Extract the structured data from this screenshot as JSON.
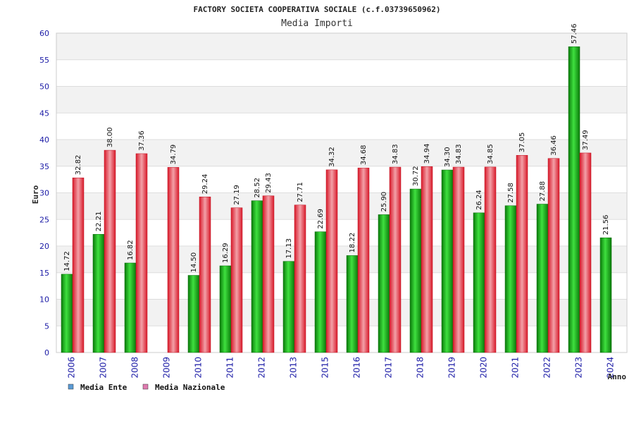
{
  "chart_data": {
    "type": "bar",
    "title": "FACTORY SOCIETA COOPERATIVA SOCIALE (c.f.03739650962)",
    "subtitle": "Media Importi",
    "ylabel": "Euro",
    "xlabel": "Anno",
    "ylim": [
      0,
      60
    ],
    "yticks": [
      0,
      5,
      10,
      15,
      20,
      25,
      30,
      35,
      40,
      45,
      50,
      55,
      60
    ],
    "categories": [
      "2006",
      "2007",
      "2008",
      "2009",
      "2010",
      "2011",
      "2012",
      "2013",
      "2015",
      "2016",
      "2017",
      "2018",
      "2019",
      "2020",
      "2021",
      "2022",
      "2023",
      "2024"
    ],
    "series": [
      {
        "name": "Media Ente",
        "color": "#1fbf1f",
        "legend_color": "#5b9bd5",
        "values": [
          14.72,
          22.21,
          16.82,
          null,
          14.5,
          16.29,
          28.52,
          17.13,
          22.69,
          18.22,
          25.9,
          30.72,
          34.3,
          26.24,
          27.58,
          27.88,
          57.46,
          21.56
        ],
        "labels": [
          "14.72",
          "22.21",
          "16.82",
          "",
          "14.50",
          "16.29",
          "28.52",
          "17.13",
          "22.69",
          "18.22",
          "25.90",
          "30.72",
          "34.30",
          "26.24",
          "27.58",
          "27.88",
          "57.46",
          "21.56"
        ]
      },
      {
        "name": "Media Nazionale",
        "color": "#e83040",
        "legend_color": "#e07bb0",
        "values": [
          32.82,
          38.0,
          37.36,
          34.79,
          29.24,
          27.19,
          29.43,
          27.71,
          34.32,
          34.68,
          34.83,
          34.94,
          34.83,
          34.85,
          37.05,
          36.46,
          37.49,
          null
        ],
        "labels": [
          "32.82",
          "38.00",
          "37.36",
          "34.79",
          "29.24",
          "27.19",
          "29.43",
          "27.71",
          "34.32",
          "34.68",
          "34.83",
          "34.94",
          "34.83",
          "34.85",
          "37.05",
          "36.46",
          "37.49",
          ""
        ]
      }
    ],
    "grid": true,
    "legend_placement": "bottom-left"
  }
}
